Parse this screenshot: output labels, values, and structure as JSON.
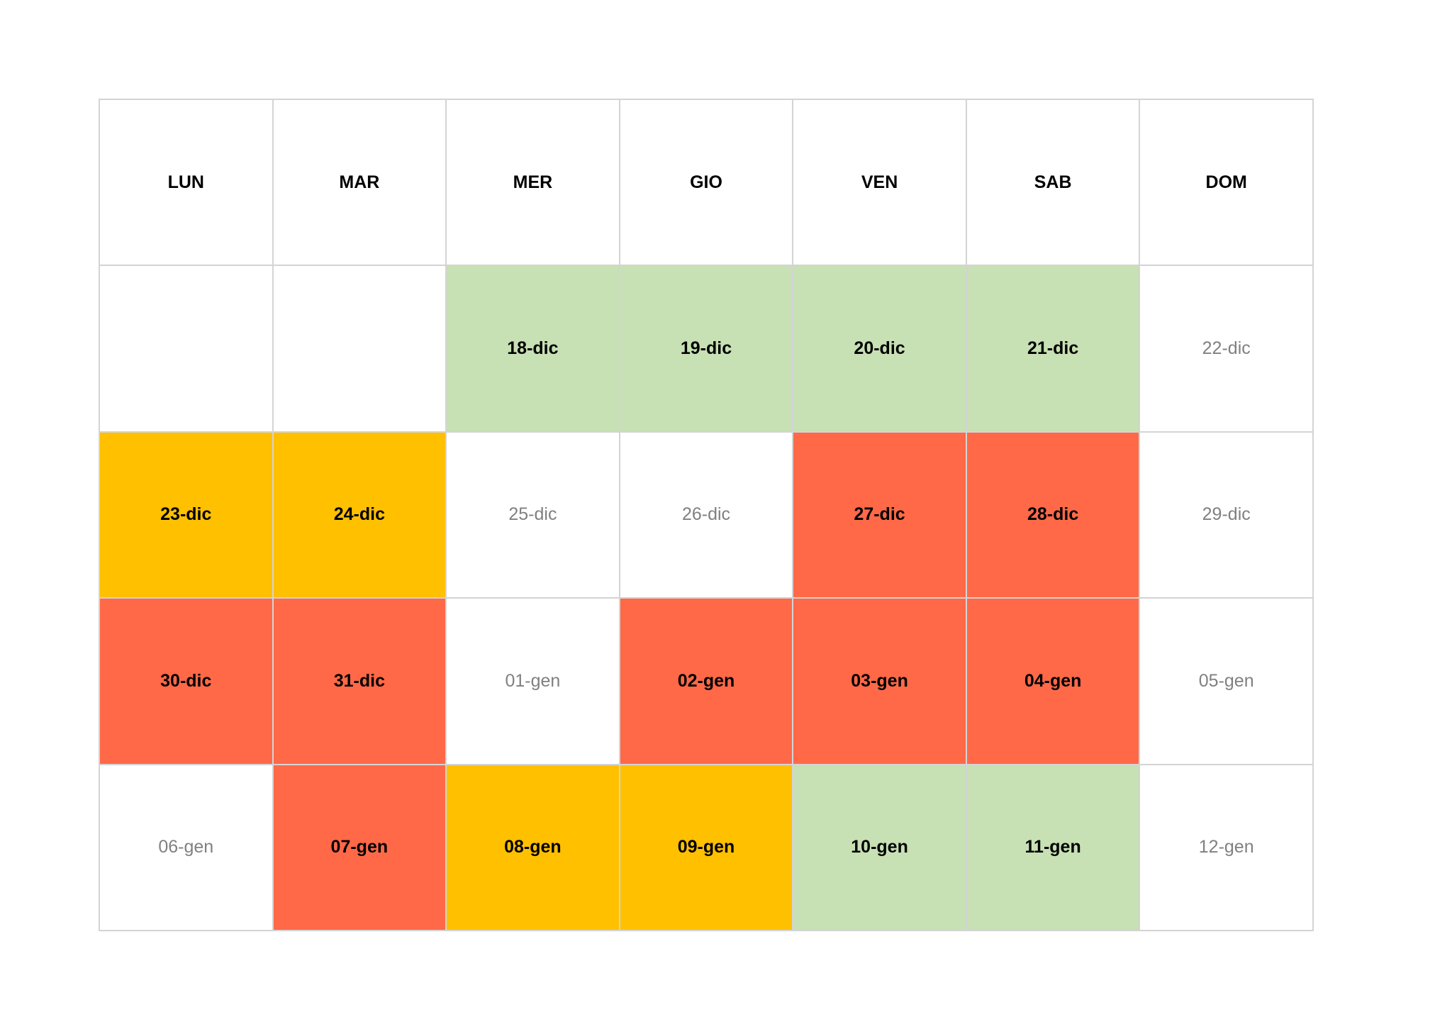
{
  "colors": {
    "green": "#c7e0b4",
    "amber": "#ffc000",
    "red": "#ff6948",
    "muted_text": "#808080",
    "grid_line": "#d4d4d4"
  },
  "calendar": {
    "headers": [
      "LUN",
      "MAR",
      "MER",
      "GIO",
      "VEN",
      "SAB",
      "DOM"
    ],
    "weeks": [
      [
        {
          "label": "",
          "status": "none"
        },
        {
          "label": "",
          "status": "none"
        },
        {
          "label": "18-dic",
          "status": "green"
        },
        {
          "label": "19-dic",
          "status": "green"
        },
        {
          "label": "20-dic",
          "status": "green"
        },
        {
          "label": "21-dic",
          "status": "green"
        },
        {
          "label": "22-dic",
          "status": "muted"
        }
      ],
      [
        {
          "label": "23-dic",
          "status": "amber"
        },
        {
          "label": "24-dic",
          "status": "amber"
        },
        {
          "label": "25-dic",
          "status": "muted"
        },
        {
          "label": "26-dic",
          "status": "muted"
        },
        {
          "label": "27-dic",
          "status": "red"
        },
        {
          "label": "28-dic",
          "status": "red"
        },
        {
          "label": "29-dic",
          "status": "muted"
        }
      ],
      [
        {
          "label": "30-dic",
          "status": "red"
        },
        {
          "label": "31-dic",
          "status": "red"
        },
        {
          "label": "01-gen",
          "status": "muted"
        },
        {
          "label": "02-gen",
          "status": "red"
        },
        {
          "label": "03-gen",
          "status": "red"
        },
        {
          "label": "04-gen",
          "status": "red"
        },
        {
          "label": "05-gen",
          "status": "muted"
        }
      ],
      [
        {
          "label": "06-gen",
          "status": "muted"
        },
        {
          "label": "07-gen",
          "status": "red"
        },
        {
          "label": "08-gen",
          "status": "amber"
        },
        {
          "label": "09-gen",
          "status": "amber"
        },
        {
          "label": "10-gen",
          "status": "green"
        },
        {
          "label": "11-gen",
          "status": "green"
        },
        {
          "label": "12-gen",
          "status": "muted"
        }
      ]
    ]
  }
}
